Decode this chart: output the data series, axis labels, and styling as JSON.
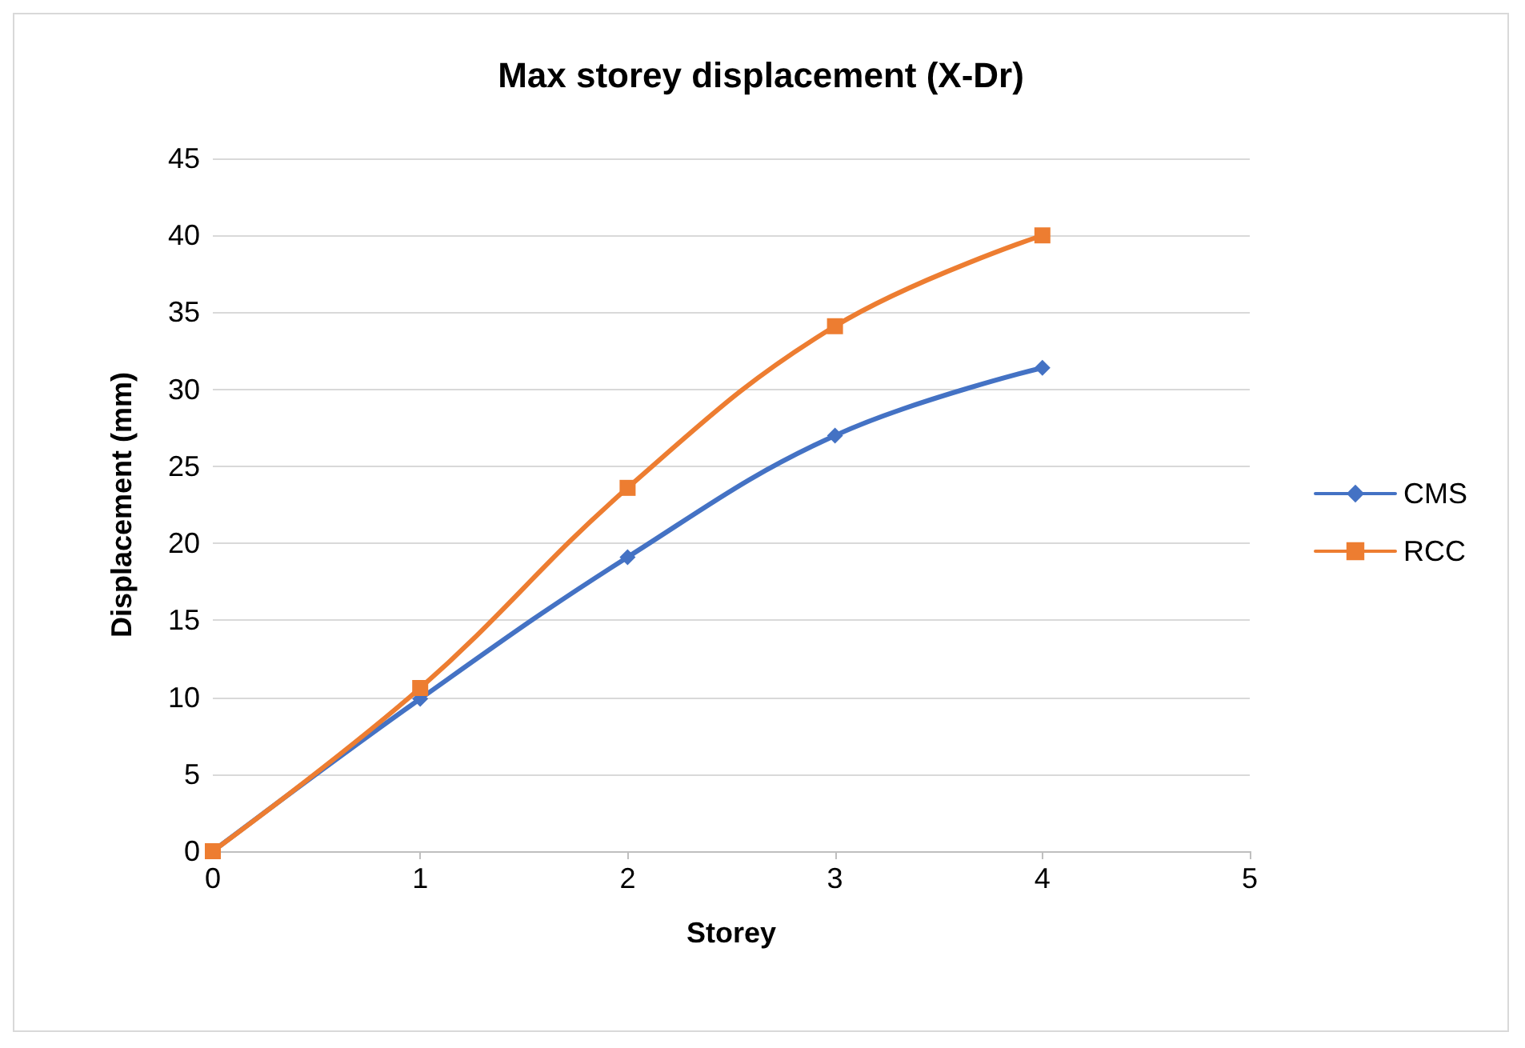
{
  "chart_data": {
    "type": "line",
    "title": "Max storey displacement (X-Dr)",
    "xlabel": "Storey",
    "ylabel": "Displacement (mm)",
    "x": [
      0,
      1,
      2,
      3,
      4
    ],
    "series": [
      {
        "name": "CMS",
        "color": "#4472c4",
        "marker": "diamond",
        "values": [
          0,
          9.9,
          19.1,
          27,
          31.4
        ]
      },
      {
        "name": "RCC",
        "color": "#ed7d31",
        "marker": "square",
        "values": [
          0,
          10.6,
          23.6,
          34.1,
          40
        ]
      }
    ],
    "xlim": [
      0,
      5
    ],
    "xticks": [
      0,
      1,
      2,
      3,
      4,
      5
    ],
    "ylim": [
      0,
      45
    ],
    "yticks": [
      0,
      5,
      10,
      15,
      20,
      25,
      30,
      35,
      40,
      45
    ],
    "grid": "y",
    "legend": "right",
    "line_style": "solid"
  }
}
